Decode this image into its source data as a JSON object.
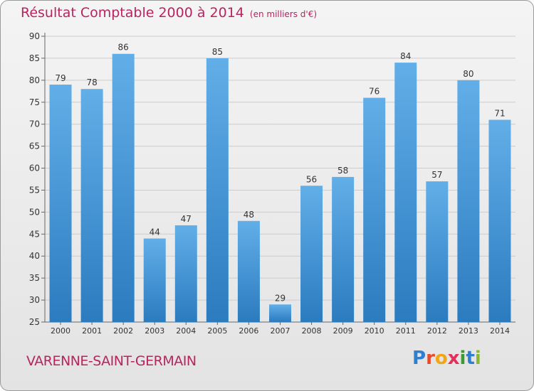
{
  "page": {
    "title": "Résultat Comptable 2000 à 2014",
    "subtitle": "(en milliers d'€)",
    "commune": "VARENNE-SAINT-GERMAIN",
    "logo": "Proxiti"
  },
  "chart_data": {
    "type": "bar",
    "title": "Résultat Comptable 2000 à 2014",
    "subtitle": "(en milliers d'€)",
    "xlabel": "",
    "ylabel": "",
    "categories": [
      "2000",
      "2001",
      "2002",
      "2003",
      "2004",
      "2005",
      "2006",
      "2007",
      "2008",
      "2009",
      "2010",
      "2011",
      "2012",
      "2013",
      "2014"
    ],
    "values": [
      79,
      78,
      86,
      44,
      47,
      85,
      48,
      29,
      56,
      58,
      76,
      84,
      57,
      80,
      71
    ],
    "ylim": [
      25,
      90
    ],
    "yticks": [
      25,
      30,
      35,
      40,
      45,
      50,
      55,
      60,
      65,
      70,
      75,
      80,
      85,
      90
    ],
    "grid": true,
    "legend": "none",
    "colors": {
      "bar_light": "#62aee8",
      "bar_dark": "#2b7bbf",
      "grid": "#cccccc",
      "axis_text": "#333333",
      "title": "#b8245e"
    }
  }
}
